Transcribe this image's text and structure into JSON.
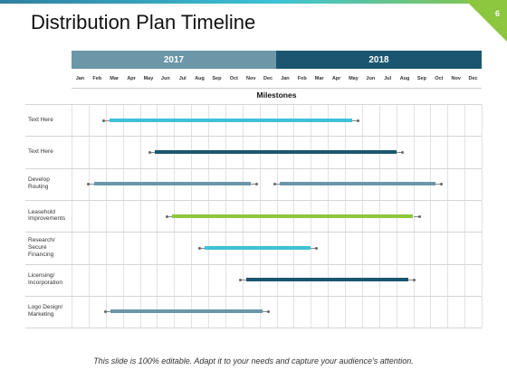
{
  "title": "Distribution Plan Timeline",
  "page_number": "6",
  "years": [
    "2017",
    "2018"
  ],
  "months": [
    "Jan",
    "Feb",
    "Mar",
    "Apr",
    "May",
    "Jun",
    "Jul",
    "Aug",
    "Sep",
    "Oct",
    "Nov",
    "Dec",
    "Jan",
    "Feb",
    "Mar",
    "Apr",
    "May",
    "Jun",
    "Jul",
    "Aug",
    "Sep",
    "Oct",
    "Nov",
    "Dec"
  ],
  "milestones_heading": "Milestones",
  "rows": [
    {
      "label": "Text Here",
      "bars": [
        {
          "start": 2.2,
          "end": 16.4,
          "color": "#3ec1d8"
        }
      ]
    },
    {
      "label": "Text Here",
      "bars": [
        {
          "start": 4.9,
          "end": 19.0,
          "color": "#1b5670"
        }
      ]
    },
    {
      "label": "Develop Routing",
      "bars": [
        {
          "start": 1.3,
          "end": 10.5,
          "color": "#6b97a8"
        },
        {
          "start": 12.2,
          "end": 21.3,
          "color": "#6b97a8"
        }
      ]
    },
    {
      "label": "Leasehold Improvements",
      "bars": [
        {
          "start": 5.9,
          "end": 20.0,
          "color": "#8dc63f"
        }
      ]
    },
    {
      "label": "Research/ Secure Financing",
      "bars": [
        {
          "start": 7.8,
          "end": 14.0,
          "color": "#3ec1d8"
        }
      ]
    },
    {
      "label": "Licensing/ Incorporation",
      "bars": [
        {
          "start": 10.2,
          "end": 19.7,
          "color": "#1b5670"
        }
      ]
    },
    {
      "label": "Logo Design/ Marketing",
      "bars": [
        {
          "start": 2.3,
          "end": 11.2,
          "color": "#6b97a8"
        }
      ]
    }
  ],
  "footer": "This slide is 100% editable. Adapt it to your needs and capture your audience's attention."
}
